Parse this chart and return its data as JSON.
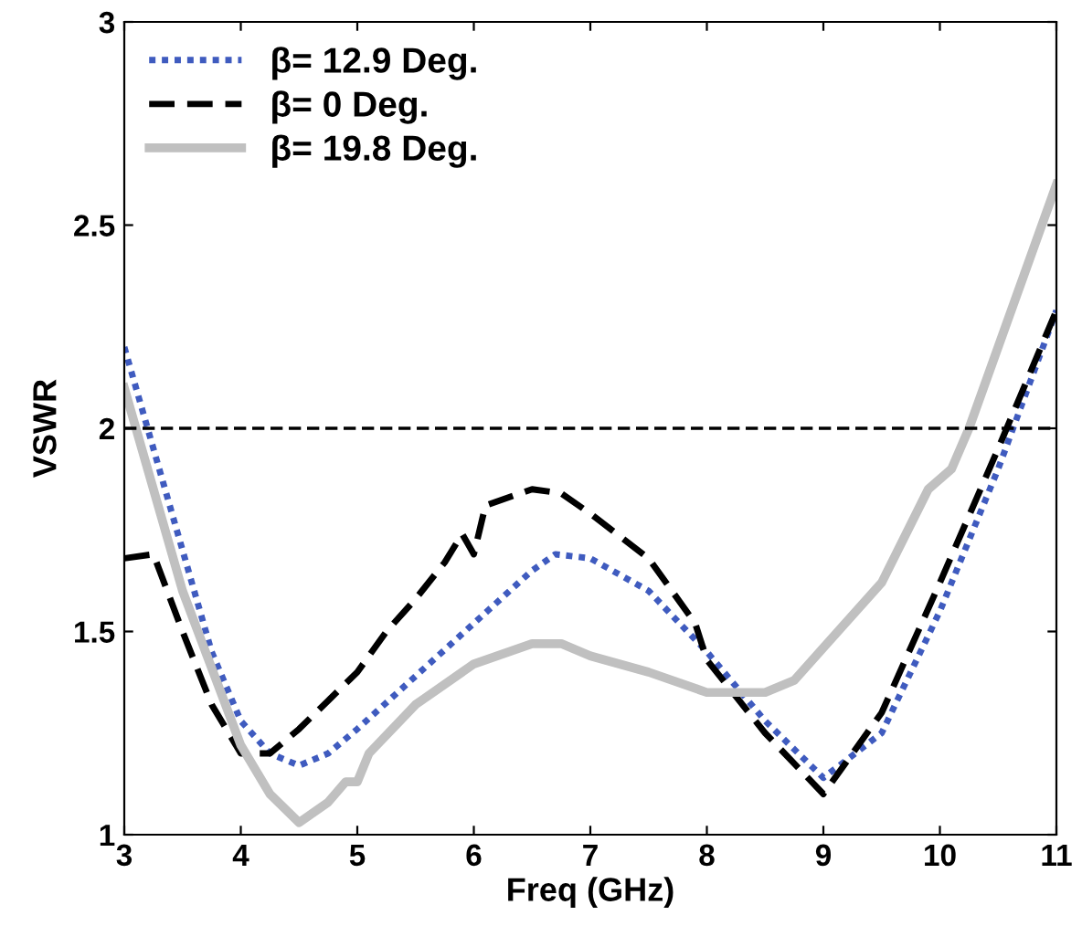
{
  "chart_data": {
    "type": "line",
    "xlabel": "Freq (GHz)",
    "ylabel": "VSWR",
    "xlim": [
      3,
      11
    ],
    "ylim": [
      1,
      3
    ],
    "xticks": [
      3,
      4,
      5,
      6,
      7,
      8,
      9,
      10,
      11
    ],
    "yticks": [
      1,
      1.5,
      2,
      2.5,
      3
    ],
    "grid": false,
    "legend": "top left",
    "series": [
      {
        "name": "β= 12.9 Deg.",
        "color": "#3f5bbf",
        "line_style": "dotted",
        "x": [
          3,
          3.25,
          3.5,
          3.75,
          4,
          4.25,
          4.5,
          4.75,
          5,
          5.5,
          6,
          6.5,
          6.7,
          7,
          7.5,
          8,
          8.5,
          9,
          9.5,
          10,
          10.5,
          11
        ],
        "values": [
          2.2,
          1.95,
          1.7,
          1.45,
          1.28,
          1.2,
          1.17,
          1.2,
          1.26,
          1.39,
          1.52,
          1.65,
          1.69,
          1.68,
          1.6,
          1.45,
          1.28,
          1.14,
          1.25,
          1.55,
          1.9,
          2.29
        ]
      },
      {
        "name": "β= 0 Deg.",
        "color": "#000000",
        "line_style": "dashed",
        "x": [
          3,
          3.25,
          3.5,
          3.75,
          4,
          4.25,
          4.5,
          4.75,
          5,
          5.25,
          5.5,
          5.75,
          5.9,
          6,
          6.1,
          6.5,
          6.75,
          7,
          7.5,
          7.9,
          8,
          8.5,
          9,
          9.5,
          10,
          10.5,
          11
        ],
        "values": [
          1.68,
          1.69,
          1.5,
          1.32,
          1.2,
          1.2,
          1.26,
          1.33,
          1.4,
          1.5,
          1.58,
          1.67,
          1.74,
          1.69,
          1.81,
          1.85,
          1.84,
          1.79,
          1.68,
          1.52,
          1.43,
          1.25,
          1.1,
          1.3,
          1.62,
          1.95,
          2.29
        ]
      },
      {
        "name": "β= 19.8 Deg.",
        "color": "#c0c0c0",
        "line_style": "solid",
        "x": [
          3,
          3.5,
          4,
          4.25,
          4.5,
          4.75,
          4.9,
          5,
          5.1,
          5.5,
          6,
          6.5,
          6.75,
          7,
          7.5,
          8,
          8.5,
          8.75,
          9,
          9.5,
          9.9,
          10.1,
          10.25,
          10.5,
          11
        ],
        "values": [
          2.1,
          1.6,
          1.22,
          1.1,
          1.03,
          1.08,
          1.13,
          1.13,
          1.2,
          1.32,
          1.42,
          1.47,
          1.47,
          1.44,
          1.4,
          1.35,
          1.35,
          1.38,
          1.46,
          1.62,
          1.85,
          1.9,
          2.0,
          2.2,
          2.6
        ]
      }
    ],
    "ref_lines": [
      {
        "axis": "y",
        "value": 2,
        "color": "#000000",
        "line_style": "dashed"
      }
    ]
  }
}
